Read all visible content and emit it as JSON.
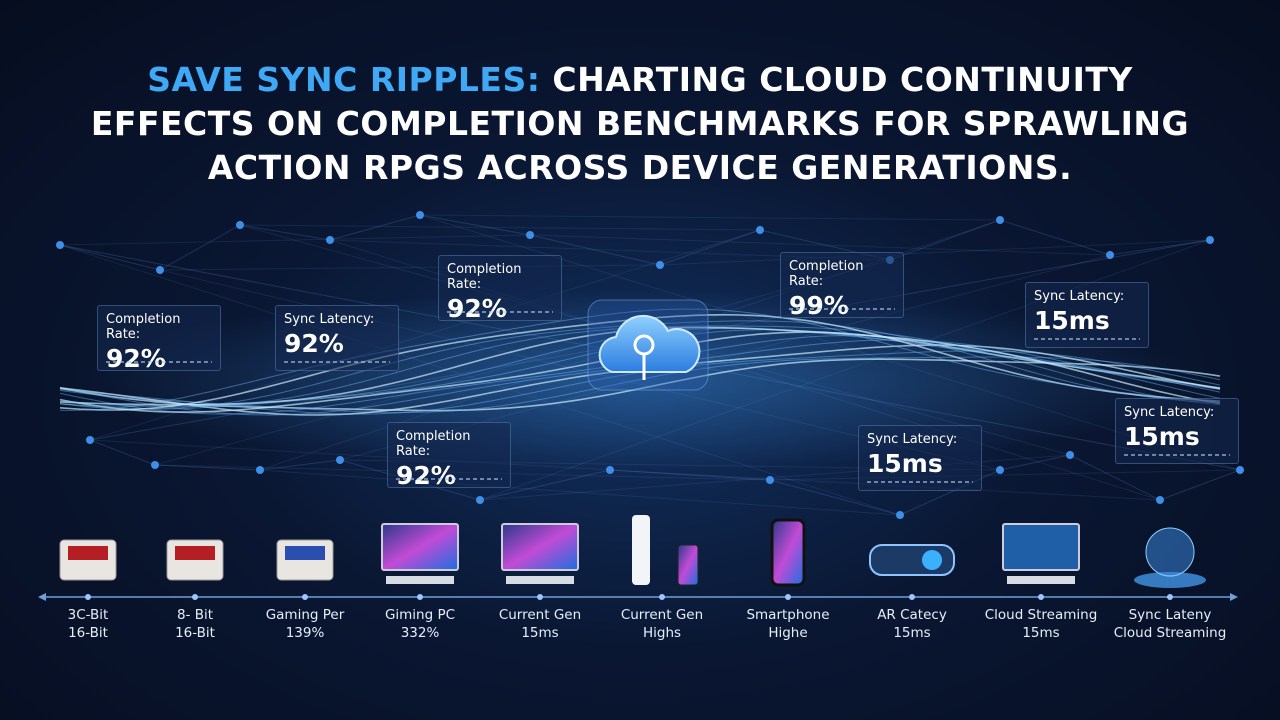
{
  "title": {
    "highlight": "SAVE SYNC RIPPLES:",
    "lines": [
      "CHARTING CLOUD CONTINUITY",
      "EFFECTS ON COMPLETION BENCHMARKS FOR SPRAWLING",
      "ACTION RPGS ACROSS DEVICE GENERATIONS."
    ]
  },
  "callouts": [
    {
      "label": "Completion Rate:",
      "value": "92%"
    },
    {
      "label": "Sync Latency:",
      "value": "92%"
    },
    {
      "label": "Completion Rate:",
      "value": "92%"
    },
    {
      "label": "Completion Rate:",
      "value": "92%"
    },
    {
      "label": "Completion Rate:",
      "value": "99%"
    },
    {
      "label": "Sync Latency:",
      "value": "15ms"
    },
    {
      "label": "Sync Latency:",
      "value": "15ms"
    },
    {
      "label": "Sync Latency:",
      "value": "15ms"
    }
  ],
  "devices": [
    {
      "name": "3C-Bit",
      "detail": "16-Bit"
    },
    {
      "name": "8- Bit",
      "detail": "16-Bit"
    },
    {
      "name": "Gaming Per",
      "detail": "139%"
    },
    {
      "name": "Giming PC",
      "detail": "332%"
    },
    {
      "name": "Current Gen",
      "detail": "15ms"
    },
    {
      "name": "Current Gen",
      "detail": "Highs"
    },
    {
      "name": "Smartphone",
      "detail": "Highe"
    },
    {
      "name": "AR Catecy",
      "detail": "15ms"
    },
    {
      "name": "Cloud Streaming",
      "detail": "15ms"
    },
    {
      "name": "Sync Lateny",
      "detail": "Cloud Streaming"
    }
  ]
}
